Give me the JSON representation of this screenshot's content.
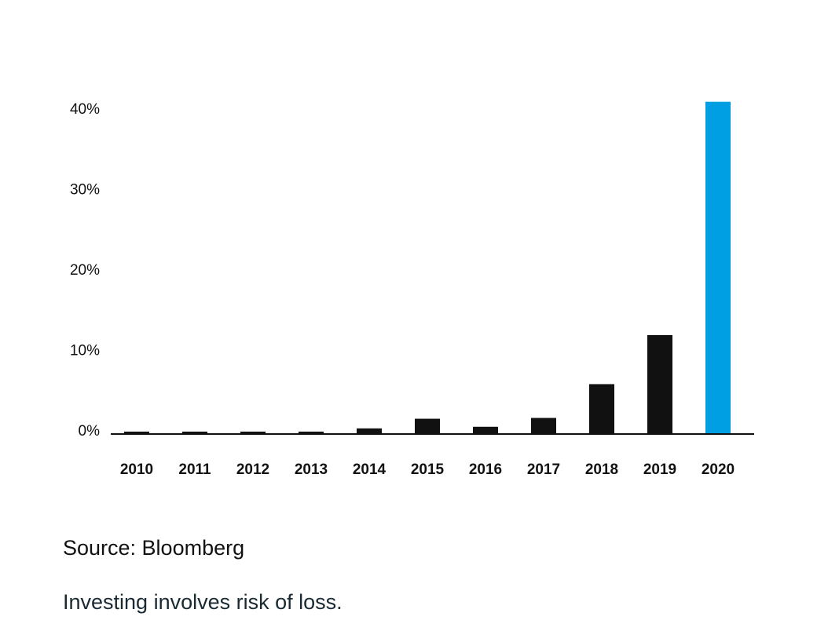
{
  "chart_data": {
    "type": "bar",
    "categories": [
      "2010",
      "2011",
      "2012",
      "2013",
      "2014",
      "2015",
      "2016",
      "2017",
      "2018",
      "2019",
      "2020"
    ],
    "values": [
      0.3,
      0.3,
      0.3,
      0.3,
      0.7,
      1.9,
      0.9,
      2.0,
      6.2,
      12.3,
      41.3
    ],
    "yticks": [
      {
        "value": 0,
        "label": "0%"
      },
      {
        "value": 10,
        "label": "10%"
      },
      {
        "value": 20,
        "label": "20%"
      },
      {
        "value": 30,
        "label": "30%"
      },
      {
        "value": 40,
        "label": "40%"
      }
    ],
    "ylim": [
      0,
      41.3
    ],
    "grid": false,
    "colors": {
      "default_bar": "#111111",
      "highlight_bar": "#009fe3",
      "highlight_category": "2020",
      "axis": "#111111"
    }
  },
  "footer": {
    "source": "Source: Bloomberg",
    "disclaimer": "Investing involves risk of loss."
  }
}
